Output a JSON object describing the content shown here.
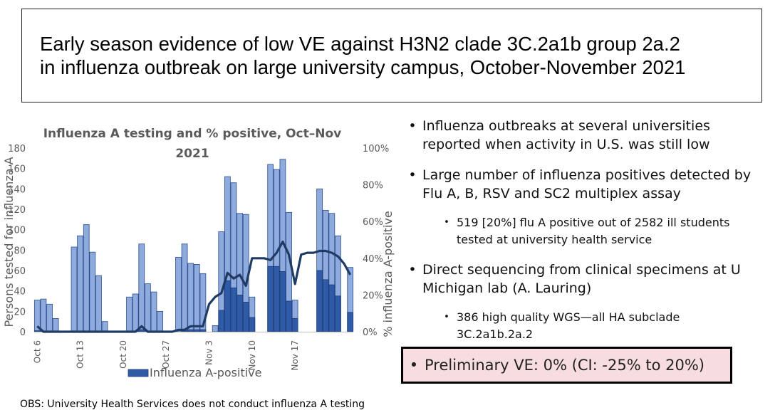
{
  "title": {
    "line1": "Early season evidence of low VE against H3N2 clade 3C.2a1b group 2a.2",
    "line2": "in influenza outbreak on large university campus, October-November 2021"
  },
  "chart_data": {
    "type": "bar",
    "title": "Influenza A testing and % positive, Oct–Nov 2021",
    "ylabel": "Persons tested for influenza A",
    "y2label": "% influenza A-positive",
    "ylim": [
      0,
      180
    ],
    "y2lim": [
      0,
      100
    ],
    "yticks": [
      "0",
      "20",
      "40",
      "60",
      "80",
      "100",
      "120",
      "140",
      "160",
      "180"
    ],
    "y2ticks": [
      "0%",
      "20%",
      "40%",
      "60%",
      "80%",
      "100%"
    ],
    "xtick_labels": [
      "Oct 6",
      "Oct 13",
      "Oct 20",
      "Oct 27",
      "Nov 3",
      "Nov 10",
      "Nov 17"
    ],
    "legend": "Influenza A-positive",
    "legend_position": "bottom",
    "series": [
      {
        "name": "Persons tested",
        "color": "#8faadc",
        "values": [
          31,
          32,
          27,
          13,
          0,
          0,
          83,
          94,
          105,
          78,
          55,
          10,
          0,
          0,
          0,
          34,
          37,
          86,
          47,
          39,
          20,
          0,
          0,
          73,
          86,
          67,
          66,
          57,
          0,
          6,
          98,
          152,
          146,
          116,
          115,
          34,
          0,
          0,
          164,
          159,
          169,
          117,
          31,
          0,
          0,
          0,
          140,
          119,
          116,
          94,
          0,
          63
        ]
      },
      {
        "name": "Influenza A-positive",
        "color": "#2e5aa6",
        "values": [
          1,
          0,
          0,
          0,
          0,
          0,
          0,
          0,
          0,
          0,
          0,
          0,
          0,
          0,
          0,
          0,
          0,
          2,
          0,
          0,
          0,
          0,
          0,
          0,
          1,
          2,
          2,
          2,
          0,
          0,
          21,
          50,
          43,
          36,
          29,
          14,
          0,
          0,
          64,
          64,
          59,
          30,
          13,
          0,
          0,
          0,
          60,
          51,
          46,
          35,
          0,
          19
        ]
      },
      {
        "name": "% positive",
        "color": "#1f3b64",
        "type": "line",
        "values": [
          3,
          0,
          0,
          0,
          0,
          0,
          0,
          0,
          0,
          0,
          0,
          0,
          0,
          0,
          0,
          0,
          0,
          3,
          0,
          0,
          0,
          0,
          0,
          1,
          1,
          3,
          3,
          3,
          15,
          19,
          21,
          32,
          29,
          31,
          25,
          40,
          40,
          40,
          39,
          43,
          49,
          42,
          26,
          42,
          43,
          43,
          44,
          44,
          43,
          41,
          37,
          31
        ]
      }
    ]
  },
  "bullets": [
    {
      "line1": "Influenza outbreaks at several universities",
      "line2": "reported when activity in U.S. was still low"
    },
    {
      "line1": "Large number of influenza positives detected by",
      "line2": "Flu A, B, RSV and SC2 multiplex assay"
    },
    {
      "line1": "519 [20%] flu A positive out of 2582 ill students",
      "line2": "tested at university health service"
    },
    {
      "line1": " Direct sequencing from clinical specimens at U",
      "line2": "Michigan lab (A. Lauring)"
    },
    {
      "line1": "386 high quality WGS—all HA subclade",
      "line2": "3C.2a1b.2a.2"
    }
  ],
  "bullet_char": "•",
  "ve_text": "Preliminary VE: 0% (CI: -25% to 20%)",
  "footnote": "OBS: University Health Services does not conduct influenza A testing"
}
